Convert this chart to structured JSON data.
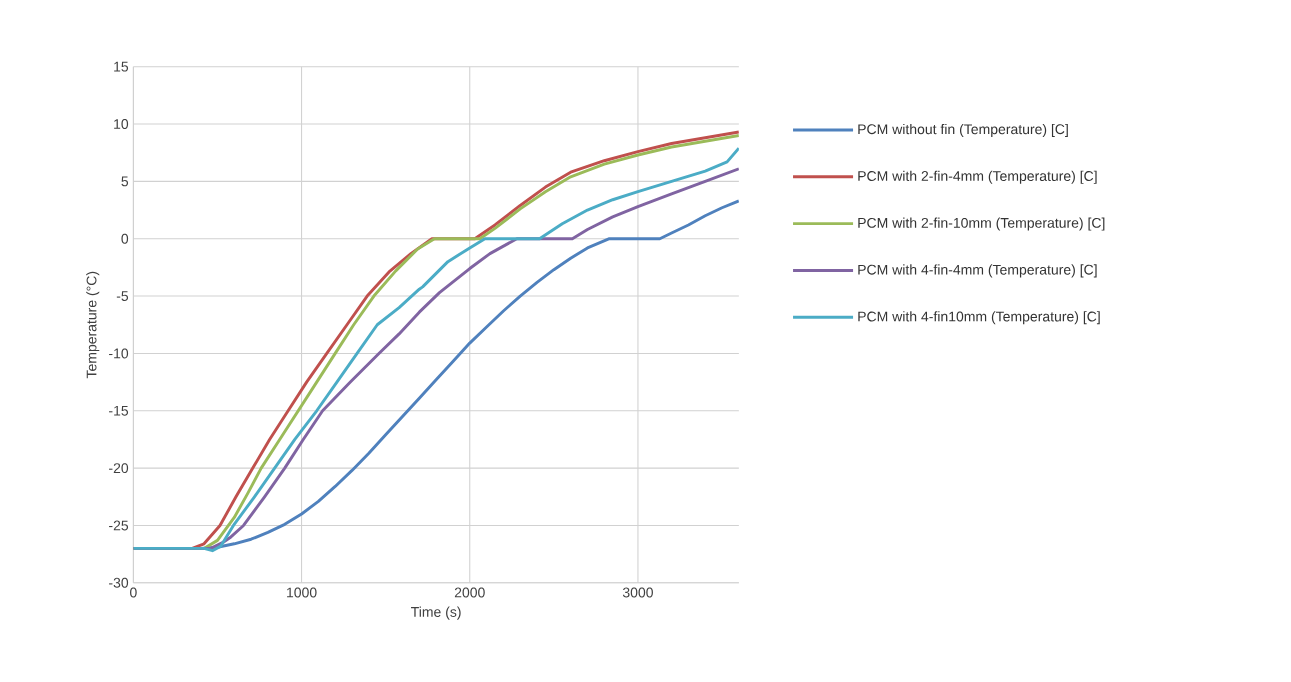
{
  "chart_data": {
    "type": "line",
    "xlabel": "Time (s)",
    "ylabel": "Temperature (°C)",
    "xlim": [
      0,
      3600
    ],
    "xticks": [
      0,
      1000,
      2000,
      3000
    ],
    "ylim": [
      -30,
      15
    ],
    "yticks": [
      -30,
      -25,
      -20,
      -15,
      -10,
      -5,
      0,
      5,
      10,
      15
    ],
    "grid": true,
    "legend": "right",
    "marker": "none",
    "line_style": "solid",
    "series": [
      {
        "name": "PCM without fin (Temperature) [C]",
        "color": "#4f81bd",
        "x": [
          0,
          400,
          500,
          600,
          700,
          800,
          900,
          1000,
          1100,
          1200,
          1300,
          1400,
          1500,
          1600,
          1700,
          1800,
          1900,
          2000,
          2100,
          2200,
          2300,
          2400,
          2500,
          2600,
          2700,
          2830,
          3130,
          3200,
          3300,
          3400,
          3500,
          3600
        ],
        "values": [
          -27,
          -27,
          -26.9,
          -26.6,
          -26.2,
          -25.6,
          -24.9,
          -24,
          -22.9,
          -21.6,
          -20.2,
          -18.7,
          -17.1,
          -15.5,
          -13.9,
          -12.3,
          -10.7,
          -9.1,
          -7.7,
          -6.3,
          -5,
          -3.8,
          -2.7,
          -1.7,
          -0.8,
          0,
          0,
          0.5,
          1.2,
          2,
          2.7,
          3.3
        ]
      },
      {
        "name": "PCM with 2-fin-4mm (Temperature) [C]",
        "color": "#c0504d",
        "x": [
          0,
          350,
          420,
          515,
          610,
          710,
          810,
          920,
          1030,
          1150,
          1270,
          1390,
          1520,
          1650,
          1775,
          2030,
          2150,
          2300,
          2450,
          2600,
          2800,
          3000,
          3200,
          3400,
          3600
        ],
        "values": [
          -27,
          -27,
          -26.6,
          -25,
          -22.5,
          -20,
          -17.5,
          -15,
          -12.5,
          -10,
          -7.5,
          -5,
          -2.9,
          -1.3,
          0,
          0,
          1.2,
          2.9,
          4.5,
          5.8,
          6.8,
          7.6,
          8.3,
          8.8,
          9.3
        ]
      },
      {
        "name": "PCM with 2-fin-10mm (Temperature) [C]",
        "color": "#9bbb59",
        "x": [
          0,
          420,
          500,
          600,
          680,
          760,
          870,
          980,
          1090,
          1200,
          1310,
          1430,
          1560,
          1690,
          1790,
          2060,
          2150,
          2300,
          2450,
          2600,
          2800,
          3000,
          3200,
          3400,
          3600
        ],
        "values": [
          -27,
          -27,
          -26.3,
          -24.3,
          -22.2,
          -20,
          -17.5,
          -15,
          -12.5,
          -10,
          -7.5,
          -5,
          -2.8,
          -0.9,
          0,
          0,
          0.9,
          2.6,
          4.1,
          5.4,
          6.5,
          7.3,
          8,
          8.5,
          9
        ]
      },
      {
        "name": "PCM with 4-fin-4mm (Temperature) [C]",
        "color": "#8064a2",
        "x": [
          0,
          460,
          530,
          580,
          655,
          780,
          900,
          1010,
          1125,
          1290,
          1460,
          1580,
          1700,
          1820,
          2000,
          2120,
          2280,
          2610,
          2700,
          2850,
          3000,
          3200,
          3400,
          3600
        ],
        "values": [
          -27,
          -27,
          -26.5,
          -26,
          -25,
          -22.5,
          -20,
          -17.5,
          -15,
          -12.5,
          -10,
          -8.3,
          -6.4,
          -4.7,
          -2.6,
          -1.3,
          0,
          0,
          0.8,
          1.9,
          2.8,
          3.9,
          5,
          6.1
        ]
      },
      {
        "name": "PCM with 4-fin10mm (Temperature) [C]",
        "color": "#4bacc6",
        "x": [
          0,
          420,
          470,
          520,
          595,
          720,
          840,
          960,
          1090,
          1210,
          1330,
          1450,
          1580,
          1700,
          1720,
          1870,
          2000,
          2090,
          2415,
          2550,
          2700,
          2850,
          3000,
          3200,
          3400,
          3530,
          3600
        ],
        "values": [
          -27,
          -27,
          -27.2,
          -26.8,
          -25,
          -22.5,
          -20,
          -17.5,
          -15,
          -12.5,
          -10,
          -7.5,
          -6,
          -4.4,
          -4.2,
          -2,
          -0.8,
          0,
          0,
          1.3,
          2.5,
          3.4,
          4.1,
          5,
          5.9,
          6.7,
          7.9
        ]
      }
    ]
  }
}
